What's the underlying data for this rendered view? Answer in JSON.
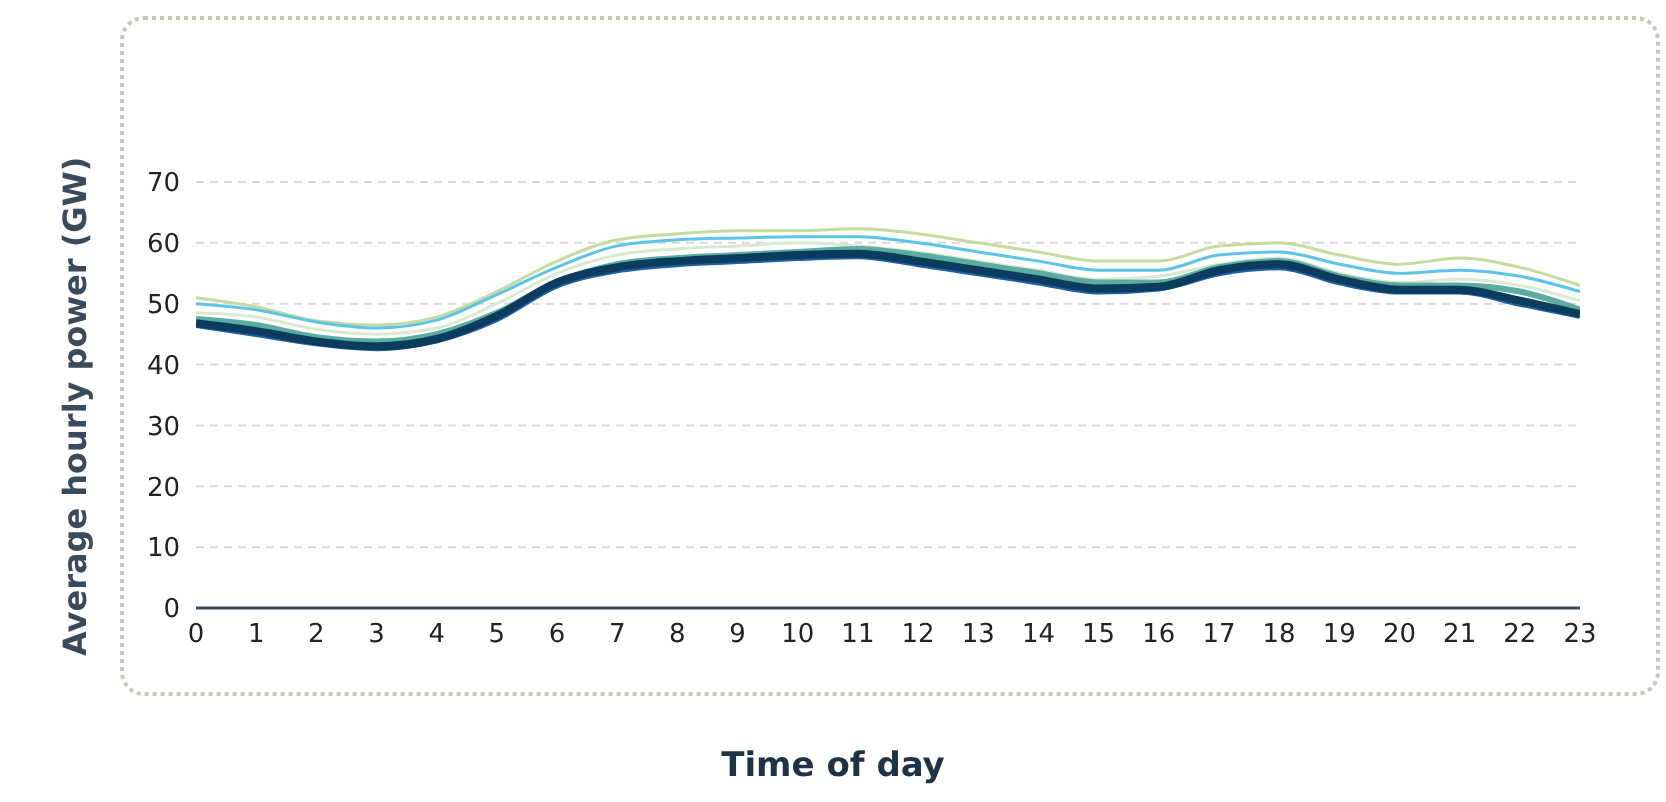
{
  "chart_data": {
    "type": "line",
    "xlabel": "Time of day",
    "ylabel": "Average hourly power (GW)",
    "x": [
      0,
      1,
      2,
      3,
      4,
      5,
      6,
      7,
      8,
      9,
      10,
      11,
      12,
      13,
      14,
      15,
      16,
      17,
      18,
      19,
      20,
      21,
      22,
      23
    ],
    "xlim": [
      0,
      23
    ],
    "xticks": [
      0,
      1,
      2,
      3,
      4,
      5,
      6,
      7,
      8,
      9,
      10,
      11,
      12,
      13,
      14,
      15,
      16,
      17,
      18,
      19,
      20,
      21,
      22,
      23
    ],
    "ylim": [
      0,
      70
    ],
    "yticks": [
      0,
      10,
      20,
      30,
      40,
      50,
      60,
      70
    ],
    "grid": "y",
    "legend": false,
    "marker": "none",
    "line_style": "solid",
    "series": [
      {
        "color": "#c5dba0",
        "values": [
          51,
          49.5,
          47.2,
          46.5,
          47.8,
          52,
          57,
          60.5,
          61.5,
          62,
          62,
          62.3,
          61.5,
          60,
          58.5,
          57,
          57,
          59.5,
          60,
          58,
          56.5,
          57.5,
          56,
          53
        ]
      },
      {
        "color": "#5bc4e8",
        "values": [
          50,
          49,
          47,
          46,
          47.3,
          51.5,
          56,
          59.5,
          60.5,
          60.8,
          61,
          61,
          60,
          58.5,
          57,
          55.5,
          55.5,
          58,
          58.5,
          56.5,
          55,
          55.5,
          54.5,
          52
        ]
      },
      {
        "color": "#d9ead3",
        "values": [
          48.5,
          47.8,
          45.8,
          45,
          46,
          50,
          55,
          58,
          59,
          59.5,
          60,
          59.5,
          58.5,
          57,
          55.5,
          54,
          54.5,
          56.5,
          57.5,
          55,
          53.5,
          54,
          53,
          50.5
        ]
      },
      {
        "color": "#5aada0",
        "values": [
          47.5,
          46.5,
          44.5,
          43.8,
          45,
          48.5,
          53.5,
          56.5,
          57.5,
          58,
          58.5,
          59,
          58,
          56.5,
          55,
          53.5,
          53.5,
          56,
          57,
          54.5,
          53,
          53,
          52,
          49
        ]
      },
      {
        "color": "#1f5fa8",
        "values": [
          46.5,
          45,
          43.5,
          42.7,
          44,
          47.5,
          53,
          55.5,
          56.5,
          57,
          57.5,
          57.8,
          56.5,
          55,
          53.5,
          52,
          52.5,
          55,
          56,
          53.5,
          52,
          52,
          50,
          48
        ]
      },
      {
        "color": "#0b3c5d",
        "values": [
          46.8,
          45.5,
          43.8,
          43,
          44.2,
          48,
          53.5,
          56,
          57,
          57.5,
          58,
          58.2,
          57,
          55.5,
          54,
          52.5,
          52.8,
          55.5,
          56.5,
          54,
          52.3,
          52.3,
          50.5,
          48.3
        ]
      }
    ]
  }
}
